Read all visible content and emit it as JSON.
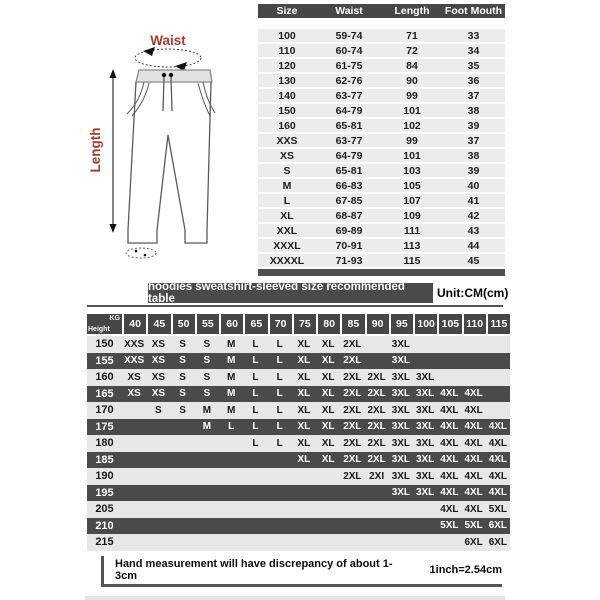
{
  "pants_diagram": {
    "waist_label": "Waist",
    "length_label": "Length",
    "accent_red": "#a8392f"
  },
  "size_table": {
    "headers": [
      "Size",
      "Waist",
      "Length",
      "Foot Mouth"
    ],
    "rows": [
      [
        "100",
        "59-74",
        "71",
        "33"
      ],
      [
        "110",
        "60-74",
        "72",
        "34"
      ],
      [
        "120",
        "61-75",
        "84",
        "35"
      ],
      [
        "130",
        "62-76",
        "90",
        "36"
      ],
      [
        "140",
        "63-77",
        "99",
        "37"
      ],
      [
        "150",
        "64-79",
        "101",
        "38"
      ],
      [
        "160",
        "65-81",
        "102",
        "39"
      ],
      [
        "XXS",
        "63-77",
        "99",
        "37"
      ],
      [
        "XS",
        "64-79",
        "101",
        "38"
      ],
      [
        "S",
        "65-81",
        "103",
        "39"
      ],
      [
        "M",
        "66-83",
        "105",
        "40"
      ],
      [
        "L",
        "67-85",
        "107",
        "41"
      ],
      [
        "XL",
        "68-87",
        "109",
        "42"
      ],
      [
        "XXL",
        "69-89",
        "111",
        "43"
      ],
      [
        "XXXL",
        "70-91",
        "113",
        "44"
      ],
      [
        "XXXXL",
        "71-93",
        "115",
        "45"
      ]
    ]
  },
  "banner": {
    "title": "hoodies sweatshirt-sleeved size recommended table",
    "unit": "Unit:CM(cm)"
  },
  "recommend_table": {
    "corner": {
      "top": "KG",
      "bottom": "Height"
    },
    "weight_columns": [
      "40",
      "45",
      "50",
      "55",
      "60",
      "65",
      "70",
      "75",
      "80",
      "85",
      "90",
      "95",
      "100",
      "105",
      "110",
      "115"
    ],
    "rows": [
      {
        "height": "150",
        "cells": [
          "XXS",
          "XS",
          "S",
          "S",
          "M",
          "L",
          "L",
          "XL",
          "XL",
          "2XL",
          "",
          "3XL",
          "",
          "",
          "",
          ""
        ]
      },
      {
        "height": "155",
        "cells": [
          "XXS",
          "XS",
          "S",
          "S",
          "M",
          "L",
          "L",
          "XL",
          "XL",
          "2XL",
          "",
          "3XL",
          "",
          "",
          "",
          ""
        ]
      },
      {
        "height": "160",
        "cells": [
          "XS",
          "XS",
          "S",
          "S",
          "M",
          "L",
          "L",
          "XL",
          "XL",
          "2XL",
          "2XL",
          "3XL",
          "3XL",
          "",
          "",
          ""
        ]
      },
      {
        "height": "165",
        "cells": [
          "XS",
          "XS",
          "S",
          "S",
          "M",
          "L",
          "L",
          "XL",
          "XL",
          "2XL",
          "2XL",
          "3XL",
          "3XL",
          "4XL",
          "4XL",
          ""
        ]
      },
      {
        "height": "170",
        "cells": [
          "",
          "S",
          "S",
          "M",
          "M",
          "L",
          "L",
          "XL",
          "XL",
          "2XL",
          "2XL",
          "3XL",
          "3XL",
          "4XL",
          "4XL",
          ""
        ]
      },
      {
        "height": "175",
        "cells": [
          "",
          "",
          "",
          "M",
          "L",
          "L",
          "L",
          "XL",
          "XL",
          "2XL",
          "2XL",
          "3XL",
          "3XL",
          "4XL",
          "4XL",
          "4XL"
        ]
      },
      {
        "height": "180",
        "cells": [
          "",
          "",
          "",
          "",
          "",
          "L",
          "L",
          "XL",
          "XL",
          "2XL",
          "2XL",
          "3XL",
          "3XL",
          "4XL",
          "4XL",
          "4XL"
        ]
      },
      {
        "height": "185",
        "cells": [
          "",
          "",
          "",
          "",
          "",
          "",
          "",
          "XL",
          "XL",
          "2XL",
          "2XL",
          "3XL",
          "3XL",
          "4XL",
          "4XL",
          "4XL"
        ]
      },
      {
        "height": "190",
        "cells": [
          "",
          "",
          "",
          "",
          "",
          "",
          "",
          "",
          "",
          "2XL",
          "2XI",
          "3XL",
          "3XL",
          "4XL",
          "4XL",
          "4XL"
        ]
      },
      {
        "height": "195",
        "cells": [
          "",
          "",
          "",
          "",
          "",
          "",
          "",
          "",
          "",
          "",
          "",
          "3XL",
          "3XL",
          "4XL",
          "4XL",
          "4XL"
        ]
      },
      {
        "height": "205",
        "cells": [
          "",
          "",
          "",
          "",
          "",
          "",
          "",
          "",
          "",
          "",
          "",
          "",
          "",
          "4XL",
          "4XL",
          "5XL"
        ]
      },
      {
        "height": "210",
        "cells": [
          "",
          "",
          "",
          "",
          "",
          "",
          "",
          "",
          "",
          "",
          "",
          "",
          "",
          "5XL",
          "5XL",
          "6XL"
        ]
      },
      {
        "height": "215",
        "cells": [
          "",
          "",
          "",
          "",
          "",
          "",
          "",
          "",
          "",
          "",
          "",
          "",
          "",
          "",
          "6XL",
          "6XL"
        ]
      }
    ]
  },
  "footnote": {
    "text": "Hand measurement will have discrepancy of about  1-3cm",
    "conversion": "1inch=2.54cm"
  },
  "colors": {
    "dark_bar": "#4a4a4a",
    "light_row": "#e7e7e7",
    "accent_red": "#a8392f"
  }
}
